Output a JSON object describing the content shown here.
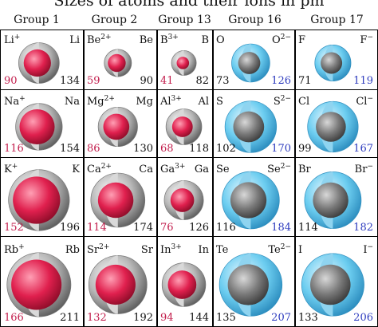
{
  "title": "Sizes of atoms and their ions in pm",
  "groups": [
    "Group 1",
    "Group 2",
    "Group 13",
    "Group 16",
    "Group 17"
  ],
  "colors": {
    "cation": "#d81e4a",
    "anion": "#5cc3ea",
    "neutral": "#9a9a9a",
    "cation_text": "#c21d4c",
    "anion_text": "#2f3dbf"
  },
  "cells": [
    [
      {
        "ion": "Li",
        "ion_charge": "+",
        "atom": "Li",
        "ion_radius": 90,
        "atom_radius": 134,
        "kind": "cation"
      },
      {
        "ion": "Be",
        "ion_charge": "2+",
        "atom": "Be",
        "ion_radius": 59,
        "atom_radius": 90,
        "kind": "cation"
      },
      {
        "ion": "B",
        "ion_charge": "3+",
        "atom": "B",
        "ion_radius": 41,
        "atom_radius": 82,
        "kind": "cation"
      },
      {
        "ion": "O",
        "ion_charge": "2−",
        "atom": "O",
        "ion_radius": 126,
        "atom_radius": 73,
        "kind": "anion"
      },
      {
        "ion": "F",
        "ion_charge": "−",
        "atom": "F",
        "ion_radius": 119,
        "atom_radius": 71,
        "kind": "anion"
      }
    ],
    [
      {
        "ion": "Na",
        "ion_charge": "+",
        "atom": "Na",
        "ion_radius": 116,
        "atom_radius": 154,
        "kind": "cation"
      },
      {
        "ion": "Mg",
        "ion_charge": "2+",
        "atom": "Mg",
        "ion_radius": 86,
        "atom_radius": 130,
        "kind": "cation"
      },
      {
        "ion": "Al",
        "ion_charge": "3+",
        "atom": "Al",
        "ion_radius": 68,
        "atom_radius": 118,
        "kind": "cation"
      },
      {
        "ion": "S",
        "ion_charge": "2−",
        "atom": "S",
        "ion_radius": 170,
        "atom_radius": 102,
        "kind": "anion"
      },
      {
        "ion": "Cl",
        "ion_charge": "−",
        "atom": "Cl",
        "ion_radius": 167,
        "atom_radius": 99,
        "kind": "anion"
      }
    ],
    [
      {
        "ion": "K",
        "ion_charge": "+",
        "atom": "K",
        "ion_radius": 152,
        "atom_radius": 196,
        "kind": "cation"
      },
      {
        "ion": "Ca",
        "ion_charge": "2+",
        "atom": "Ca",
        "ion_radius": 114,
        "atom_radius": 174,
        "kind": "cation"
      },
      {
        "ion": "Ga",
        "ion_charge": "3+",
        "atom": "Ga",
        "ion_radius": 76,
        "atom_radius": 126,
        "kind": "cation"
      },
      {
        "ion": "Se",
        "ion_charge": "2−",
        "atom": "Se",
        "ion_radius": 184,
        "atom_radius": 116,
        "kind": "anion"
      },
      {
        "ion": "Br",
        "ion_charge": "−",
        "atom": "Br",
        "ion_radius": 182,
        "atom_radius": 114,
        "kind": "anion"
      }
    ],
    [
      {
        "ion": "Rb",
        "ion_charge": "+",
        "atom": "Rb",
        "ion_radius": 166,
        "atom_radius": 211,
        "kind": "cation"
      },
      {
        "ion": "Sr",
        "ion_charge": "2+",
        "atom": "Sr",
        "ion_radius": 132,
        "atom_radius": 192,
        "kind": "cation"
      },
      {
        "ion": "In",
        "ion_charge": "3+",
        "atom": "In",
        "ion_radius": 94,
        "atom_radius": 144,
        "kind": "cation"
      },
      {
        "ion": "Te",
        "ion_charge": "2−",
        "atom": "Te",
        "ion_radius": 207,
        "atom_radius": 135,
        "kind": "anion"
      },
      {
        "ion": "I",
        "ion_charge": "−",
        "atom": "I",
        "ion_radius": 206,
        "atom_radius": 133,
        "kind": "anion"
      }
    ]
  ]
}
